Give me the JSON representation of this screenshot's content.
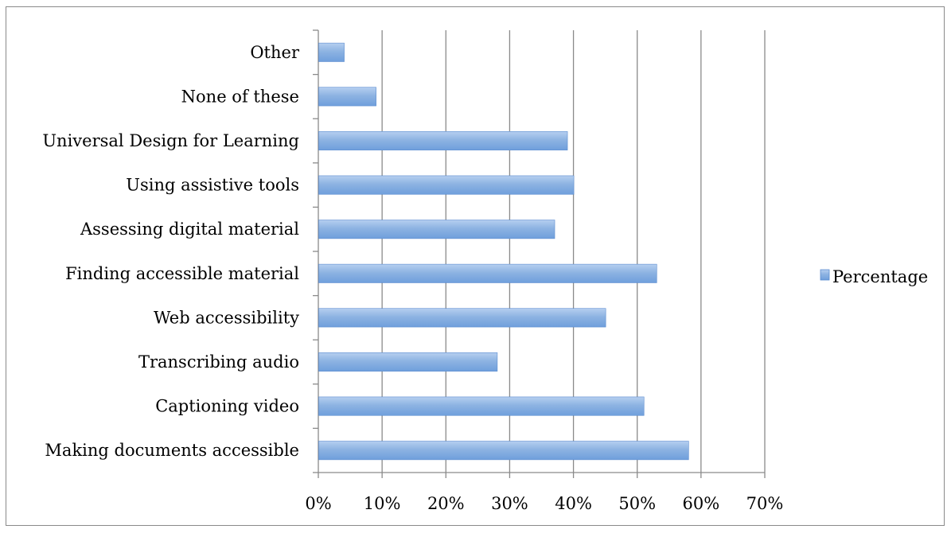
{
  "chart_data": {
    "type": "bar",
    "orientation": "horizontal",
    "categories": [
      "Making documents accessible",
      "Captioning video",
      "Transcribing audio",
      "Web accessibility",
      "Finding accessible material",
      "Assessing digital material",
      "Using assistive tools",
      "Universal Design for Learning",
      "None of these",
      "Other"
    ],
    "series": [
      {
        "name": "Percentage",
        "values": [
          58,
          51,
          28,
          45,
          53,
          37,
          40,
          39,
          9,
          4
        ]
      }
    ],
    "xlim": [
      0,
      70
    ],
    "x_ticks": [
      "0%",
      "10%",
      "20%",
      "30%",
      "40%",
      "50%",
      "60%",
      "70%"
    ],
    "grid": "vertical major gridlines",
    "legend": "right",
    "colors": {
      "bar": "#8db3e2",
      "bar_edge": "#5b8ccf",
      "grid": "#8a8a8a",
      "text": "#000000"
    }
  }
}
